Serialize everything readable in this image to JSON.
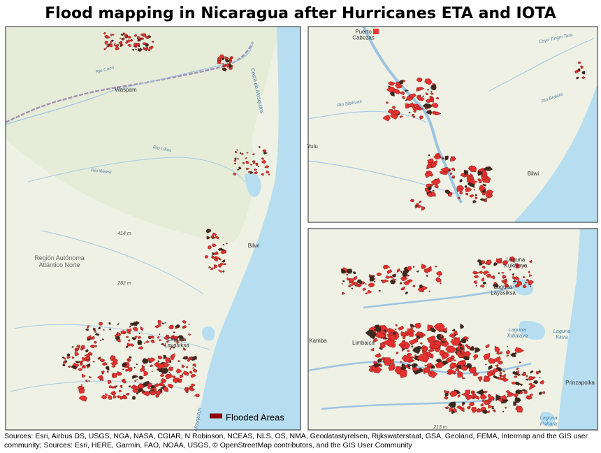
{
  "title": "Flood mapping in Nicaragua after Hurricanes ETA and IOTA",
  "maps": [
    {
      "labels": [
        "Waspam",
        "Rio Coco",
        "Costa de Mosquitos",
        "Rio Likus",
        "Rio Wawa",
        "414 m",
        "Región Autónoma Atlántico Norte",
        "282 m",
        "Bilwi",
        "Laguna Layasiksa",
        "Mosquitos"
      ]
    },
    {
      "labels": [
        "Puerto Cabezas",
        "Cayo Tingni Tara",
        "Rio Sisikuas",
        "Rio Brakira",
        "Yulu",
        "Bilwi"
      ]
    },
    {
      "labels": [
        "Laguna Kukalaya",
        "Laguna Layasiksa",
        "Limbaica",
        "Kamba",
        "Laguna Tubalaya",
        "Laguna Kiora",
        "Prinzapolka",
        "Laguna Pahara",
        "213 m"
      ]
    }
  ],
  "legend": {
    "label": "Flooded Areas"
  },
  "sources": [
    "Sources: Esri, Airbus DS, USGS, NGA, NASA, CGIAR, N Robinson, NCEAS, NLS, OS, NMA, Geodatastyrelsen, Rijkswaterstaat, GSA, Geoland, FEMA, Intermap and the GIS user",
    "community; Sources: Esri, HERE, Garmin, FAO, NOAA, USGS, © OpenStreetMap contributors, and the GIS User Community"
  ]
}
